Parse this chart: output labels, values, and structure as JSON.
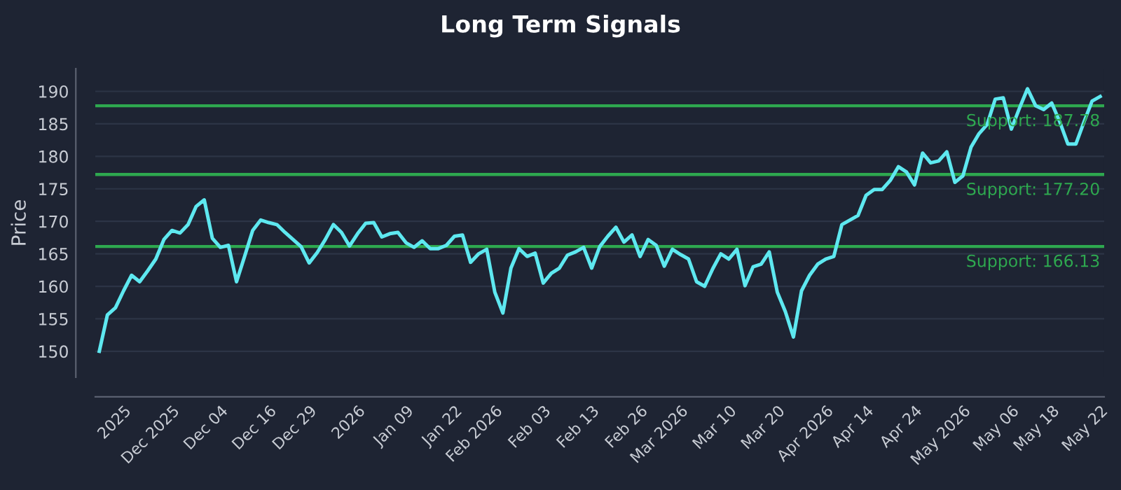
{
  "chart_data": {
    "type": "line",
    "title": "Long Term Signals",
    "ylabel": "Price",
    "categories": [
      null,
      null,
      null,
      "2025",
      null,
      null,
      null,
      null,
      null,
      "Dec 2025",
      null,
      null,
      null,
      null,
      null,
      "Dec 04",
      null,
      null,
      null,
      null,
      null,
      "Dec 16",
      null,
      null,
      null,
      null,
      "Dec 29",
      null,
      null,
      null,
      null,
      null,
      "2026",
      null,
      null,
      null,
      null,
      null,
      "Jan 09",
      null,
      null,
      null,
      null,
      null,
      "Jan 22",
      null,
      null,
      null,
      null,
      "Feb 2026",
      null,
      null,
      null,
      null,
      null,
      "Feb 03",
      null,
      null,
      null,
      null,
      null,
      "Feb 13",
      null,
      null,
      null,
      null,
      null,
      "Feb 26",
      null,
      null,
      null,
      null,
      "Mar 2026",
      null,
      null,
      null,
      null,
      null,
      "Mar 10",
      null,
      null,
      null,
      null,
      null,
      "Mar 20",
      null,
      null,
      null,
      null,
      null,
      "Apr 2026",
      null,
      null,
      null,
      null,
      "Apr 14",
      null,
      null,
      null,
      null,
      null,
      "Apr 24",
      null,
      null,
      null,
      null,
      null,
      "May 2026",
      null,
      null,
      null,
      null,
      null,
      "May 06",
      null,
      null,
      null,
      null,
      "May 18",
      null,
      null,
      null,
      null,
      null,
      "May 22"
    ],
    "series": [
      {
        "color": "#5ee8f0",
        "values": [
          150,
          155.6,
          156.7,
          159.3,
          161.7,
          160.7,
          162.4,
          164.2,
          167.2,
          168.6,
          168.2,
          169.5,
          172.3,
          173.3,
          167.4,
          166.0,
          166.3,
          160.7,
          164.6,
          168.6,
          170.2,
          169.8,
          169.5,
          168.3,
          167.2,
          166.1,
          163.6,
          165.2,
          167.2,
          169.5,
          168.3,
          166.2,
          168.1,
          169.7,
          169.8,
          167.6,
          168.1,
          168.3,
          166.7,
          166.0,
          167.0,
          165.8,
          165.8,
          166.3,
          167.7,
          167.9,
          163.7,
          165.0,
          165.7,
          159.1,
          155.9,
          162.8,
          165.8,
          164.6,
          165.1,
          160.5,
          162.0,
          162.8,
          164.8,
          165.3,
          166.0,
          162.8,
          166.1,
          167.7,
          169.1,
          166.8,
          167.9,
          164.6,
          167.2,
          166.3,
          163.1,
          165.7,
          164.9,
          164.2,
          160.7,
          160.0,
          162.7,
          165.0,
          164.2,
          165.7,
          160.1,
          163.0,
          163.4,
          165.3,
          159.1,
          156.1,
          152.2,
          159.3,
          161.7,
          163.4,
          164.2,
          164.6,
          169.5,
          170.2,
          170.9,
          174.0,
          174.9,
          174.9,
          176.3,
          178.4,
          177.6,
          175.6,
          180.5,
          179.0,
          179.3,
          180.7,
          176.0,
          177.0,
          181.4,
          183.5,
          184.9,
          188.8,
          189.0,
          184.2,
          187.4,
          190.4,
          187.8,
          187.2,
          188.2,
          185.3,
          181.9,
          181.9,
          185.3,
          188.5,
          189.2
        ]
      }
    ],
    "ylim": [
      146,
      193.5
    ],
    "yticks": [
      150,
      155,
      160,
      165,
      170,
      175,
      180,
      185,
      190
    ],
    "grid": "y",
    "line_style": "solid",
    "marker": "none",
    "ref_lines": [
      {
        "axis": "y",
        "value": 187.78,
        "label": "Support: 187.78",
        "color": "#2ea84f"
      },
      {
        "axis": "y",
        "value": 177.2,
        "label": "Support: 177.20",
        "color": "#2ea84f"
      },
      {
        "axis": "y",
        "value": 166.13,
        "label": "Support: 166.13",
        "color": "#2ea84f"
      }
    ]
  }
}
